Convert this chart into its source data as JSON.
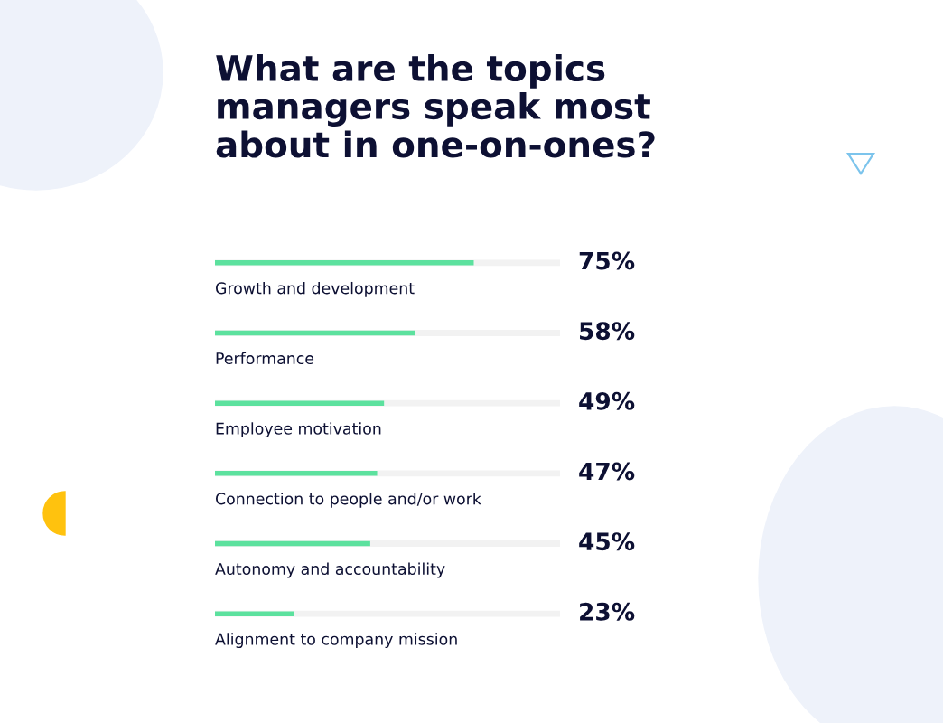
{
  "chart_data": {
    "type": "bar",
    "orientation": "horizontal",
    "title": "What are the topics\nmanagers speak most\nabout in one-on-ones?",
    "categories": [
      "Growth and development",
      "Performance",
      "Employee motivation",
      "Connection to people and/or work",
      "Autonomy and accountability",
      "Alignment to company mission"
    ],
    "values": [
      75,
      58,
      49,
      47,
      45,
      23
    ],
    "color": "#5ce19e",
    "xlim": [
      0,
      100
    ],
    "value_labels": [
      "75%",
      "58%",
      "49%",
      "47%",
      "45%",
      "23%"
    ]
  }
}
